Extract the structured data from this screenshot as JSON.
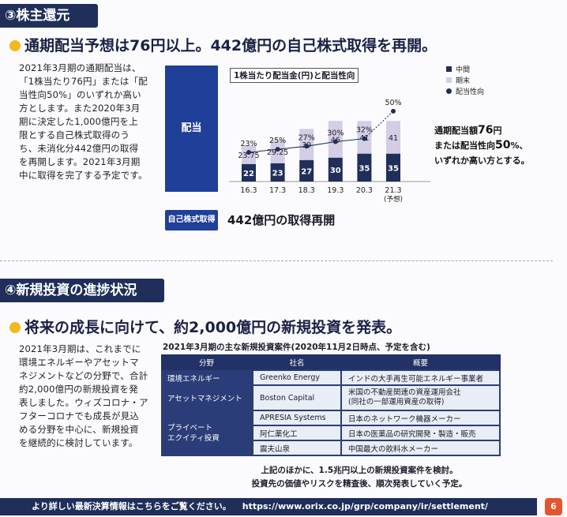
{
  "section3": {
    "header": "③株主還元",
    "headline": "通期配当予想は76円以上。442億円の自己株式取得を再開。",
    "body_lines": [
      "2021年3月期の通期配当は、",
      "「1株当たり76円」または「配",
      "当性向50%」のいずれか高い",
      "方とします。また2020年3月",
      "期に決定した1,000億円を上",
      "限とする自己株式取得のう",
      "ち、未消化分442億円の取得",
      "を再開します。2021年3月期",
      "中に取得を完了する予定です。"
    ],
    "dividend_label": "配当",
    "buyback_label": "自己株式取得",
    "buyback_text": "442億円の取得再開",
    "note_lines": [
      {
        "pre": "通期配当額",
        "big": "76",
        "post": "円"
      },
      {
        "pre": "または配当性向",
        "big": "50",
        "post": "%、"
      },
      {
        "pre": "いずれか高い方とする。",
        "big": "",
        "post": ""
      }
    ]
  },
  "chart_data": {
    "type": "bar",
    "title": "1株当たり配当金(円)と配当性向",
    "categories": [
      "16.3",
      "17.3",
      "18.3",
      "19.3",
      "20.3",
      "21.3"
    ],
    "category_sub": [
      "",
      "",
      "",
      "",
      "",
      "(予想)"
    ],
    "series": [
      {
        "name": "中間",
        "values": [
          22,
          23,
          27,
          30,
          35,
          35
        ],
        "color": "#1f2f5a"
      },
      {
        "name": "期末",
        "values": [
          23.75,
          29.25,
          39,
          46,
          41,
          41
        ],
        "color": "#d3cde6"
      },
      {
        "name": "配当性向",
        "values": [
          23,
          25,
          27,
          30,
          32,
          50
        ],
        "unit": "%",
        "color": "#1f2f5a"
      }
    ],
    "stacked": true,
    "legend_position": "top-right"
  },
  "section4": {
    "header": "④新規投資の進捗状況",
    "headline": "将来の成長に向けて、約2,000億円の新規投資を発表。",
    "body_lines": [
      "2021年3月期は、これまでに",
      "環境エネルギーやアセットマ",
      "ネジメントなどの分野で、合計",
      "約2,000億円の新規投資を発",
      "表しました。ウィズコロナ・ア",
      "フターコロナでも成長が見込",
      "める分野を中心に、新規投資",
      "を継続的に検討しています。"
    ],
    "table_caption": "2021年3月期の主な新規投資案件(2020年11月2日時点、予定を含む)",
    "table_headers": [
      "分野",
      "社名",
      "概要"
    ],
    "rows": [
      {
        "field": "環境エネルギー",
        "name": "Greenko Energy",
        "desc": "インドの大手再生可能エネルギー事業者"
      },
      {
        "field": "アセットマネジメント",
        "name": "Boston Capital",
        "desc": "米国の不動産関連の資産運用会社",
        "desc2": "(同社の一部運用資産の取得)"
      },
      {
        "field": "プライベート",
        "field2": "エクイティ投資",
        "name": "APRESIA Systems",
        "desc": "日本のネットワーク機器メーカー"
      },
      {
        "name": "阿仁薬化工",
        "desc": "日本の医薬品の研究開発・製造・販売"
      },
      {
        "name": "震夫山泉",
        "desc": "中国最大の飲料水メーカー"
      }
    ],
    "foot_lines": [
      "上記のほかに、1.5兆円以上の新規投資案件を検討。",
      "投資先の価値やリスクを精査後、順次発表していく予定。"
    ]
  },
  "footer": {
    "text": "より詳しい最新決算情報はこちらをご覧ください。",
    "url": "https://www.orix.co.jp/grp/company/ir/settlement/",
    "page": "6"
  },
  "colors": {
    "navy": "#1f2f5a",
    "blue": "#1f3f98",
    "lavender": "#d3cde6",
    "yellow": "#f3b81b",
    "orange": "#e8542d"
  }
}
